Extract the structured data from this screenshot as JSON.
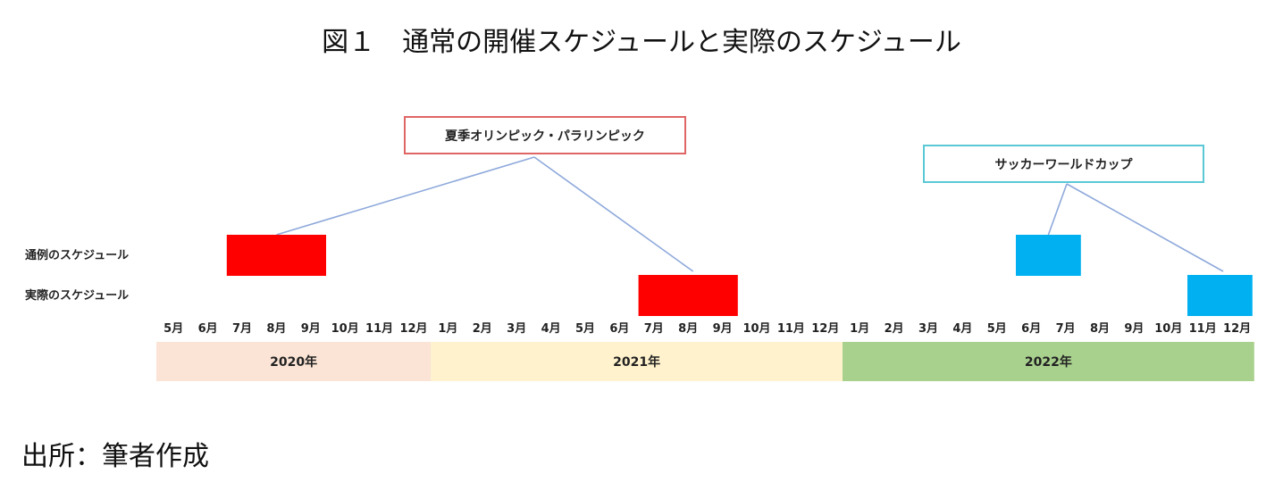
{
  "title": "図１　通常の開催スケジュールと実際のスケジュール",
  "source": "出所：筆者作成",
  "chart_data": {
    "type": "timeline",
    "months": [
      "5月",
      "6月",
      "7月",
      "8月",
      "9月",
      "10月",
      "11月",
      "12月",
      "1月",
      "2月",
      "3月",
      "4月",
      "5月",
      "6月",
      "7月",
      "8月",
      "9月",
      "10月",
      "11月",
      "12月",
      "1月",
      "2月",
      "3月",
      "4月",
      "5月",
      "6月",
      "7月",
      "8月",
      "9月",
      "10月",
      "11月",
      "12月"
    ],
    "years": [
      {
        "label": "2020年",
        "start": "2020-05",
        "end": "2020-12",
        "color": "#fbe4d6"
      },
      {
        "label": "2021年",
        "start": "2021-01",
        "end": "2021-12",
        "color": "#fff2cc"
      },
      {
        "label": "2022年",
        "start": "2022-01",
        "end": "2022-12",
        "color": "#a9d18e"
      }
    ],
    "rows": [
      "通例のスケジュール",
      "実際のスケジュール"
    ],
    "events": [
      {
        "name": "夏季オリンピック・パラリンピック",
        "color": "#ff0000",
        "box_border": "#e06666",
        "schedules": [
          {
            "row": "通例のスケジュール",
            "start": "2020-07",
            "end": "2020-09"
          },
          {
            "row": "実際のスケジュール",
            "start": "2021-07",
            "end": "2021-09"
          }
        ]
      },
      {
        "name": "サッカーワールドカップ",
        "color": "#00b0f0",
        "box_border": "#5bc8d6",
        "schedules": [
          {
            "row": "通例のスケジュール",
            "start": "2022-06",
            "end": "2022-07"
          },
          {
            "row": "実際のスケジュール",
            "start": "2022-11",
            "end": "2022-12"
          }
        ]
      }
    ],
    "connector_color": "#8ea9db"
  }
}
